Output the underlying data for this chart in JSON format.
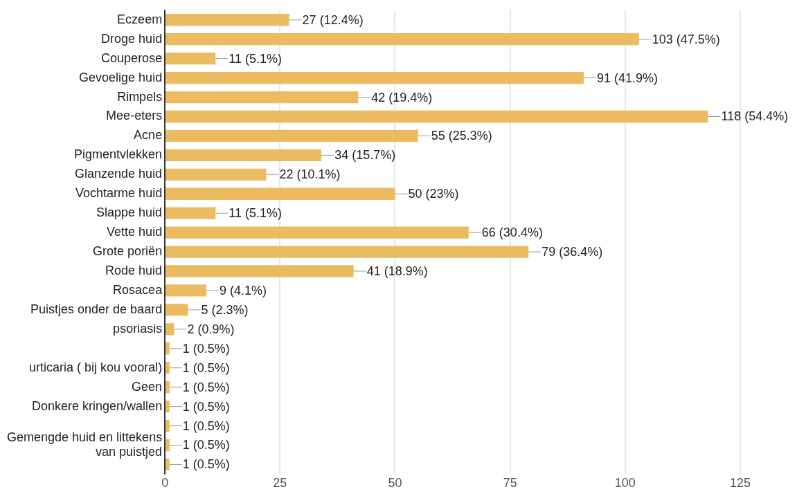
{
  "chart_data": {
    "type": "bar",
    "orientation": "horizontal",
    "categories": [
      "Eczeem",
      "Droge huid",
      "Couperose",
      "Gevoelige huid",
      "Rimpels",
      "Mee-eters",
      "Acne",
      "Pigmentvlekken",
      "Glanzende huid",
      "Vochtarme huid",
      "Slappe huid",
      "Vette huid",
      "Grote poriën",
      "Rode huid",
      "Rosacea",
      "Puistjes onder de baard",
      "psoriasis",
      null,
      "urticaria ( bij kou vooral)",
      "Geen",
      "Donkere kringen/wallen",
      null,
      "Gemengde huid en littekens van puistjed",
      null
    ],
    "values": [
      27,
      103,
      11,
      91,
      42,
      118,
      55,
      34,
      22,
      50,
      11,
      66,
      79,
      41,
      9,
      5,
      2,
      1,
      1,
      1,
      1,
      1,
      1,
      1
    ],
    "value_labels": [
      "27 (12.4%)",
      "103 (47.5%)",
      "11 (5.1%)",
      "91 (41.9%)",
      "42 (19.4%)",
      "118 (54.4%)",
      "55 (25.3%)",
      "34 (15.7%)",
      "22 (10.1%)",
      "50 (23%)",
      "11 (5.1%)",
      "66 (30.4%)",
      "79 (36.4%)",
      "41 (18.9%)",
      "9 (4.1%)",
      "5 (2.3%)",
      "2 (0.9%)",
      "1 (0.5%)",
      "1 (0.5%)",
      "1 (0.5%)",
      "1 (0.5%)",
      "1 (0.5%)",
      "1 (0.5%)",
      "1 (0.5%)"
    ],
    "color": "#ebbb62",
    "xlim": [
      0,
      125
    ],
    "xticks": [
      0,
      25,
      50,
      75,
      100,
      125
    ],
    "grid": "x",
    "legend": false
  }
}
